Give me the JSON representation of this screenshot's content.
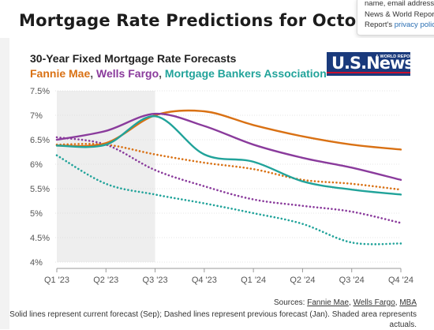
{
  "page": {
    "title": "Mortgage Rate Predictions for October"
  },
  "popup": {
    "line1": "name, email address",
    "line2": "News & World Repor",
    "line3_prefix": "Report's ",
    "line3_link": "privacy polic"
  },
  "logo": {
    "text": "U.S.News",
    "small": "& WORLD REPORT"
  },
  "chart_data": {
    "type": "line",
    "title": "30-Year Fixed Mortgage Rate Forecasts",
    "subtitle_parts": [
      {
        "text": "Fannie Mae",
        "color": "#d97114"
      },
      {
        "text": ", ",
        "color": "#555555"
      },
      {
        "text": "Wells Fargo",
        "color": "#8a3b9c"
      },
      {
        "text": ", ",
        "color": "#555555"
      },
      {
        "text": "Mortgage Bankers Association",
        "color": "#21a39a"
      }
    ],
    "categories": [
      "Q1 '23",
      "Q2 '23",
      "Q3 '23",
      "Q4 '23",
      "Q1 '24",
      "Q2 '24",
      "Q3 '24",
      "Q4 '24"
    ],
    "y_ticks": [
      "7.5%",
      "7%",
      "6.5%",
      "6%",
      "5.5%",
      "5%",
      "4.5%",
      "4%"
    ],
    "ylim": [
      4,
      7.5
    ],
    "shaded_range": [
      "Q1 '23",
      "Q3 '23"
    ],
    "series": [
      {
        "name": "Fannie Mae",
        "style": "solid",
        "color": "#d97114",
        "values": [
          6.38,
          6.43,
          7.0,
          7.08,
          6.8,
          6.57,
          6.4,
          6.3
        ]
      },
      {
        "name": "Wells Fargo",
        "style": "solid",
        "color": "#8a3b9c",
        "values": [
          6.5,
          6.68,
          7.03,
          6.78,
          6.4,
          6.13,
          5.93,
          5.68
        ]
      },
      {
        "name": "Mortgage Bankers Association",
        "style": "solid",
        "color": "#21a39a",
        "values": [
          6.38,
          6.4,
          6.98,
          6.2,
          6.05,
          5.65,
          5.48,
          5.38
        ]
      },
      {
        "name": "Fannie Mae",
        "style": "dashed",
        "color": "#d97114",
        "values": [
          6.4,
          6.4,
          6.2,
          6.03,
          5.9,
          5.68,
          5.6,
          5.48
        ]
      },
      {
        "name": "Wells Fargo",
        "style": "dashed",
        "color": "#8a3b9c",
        "values": [
          6.55,
          6.4,
          5.88,
          5.55,
          5.28,
          5.15,
          5.03,
          4.8
        ]
      },
      {
        "name": "Mortgage Bankers Association",
        "style": "dashed",
        "color": "#21a39a",
        "values": [
          6.18,
          5.6,
          5.38,
          5.2,
          5.0,
          4.78,
          4.4,
          4.38
        ]
      }
    ]
  },
  "source": {
    "prefix": "Sources: ",
    "items": [
      "Fannie Mae",
      "Wells Fargo",
      "MBA"
    ]
  },
  "note": "Solid lines represent current forecast (Sep); Dashed lines represent previous forecast (Jan). Shaded area represents actuals."
}
